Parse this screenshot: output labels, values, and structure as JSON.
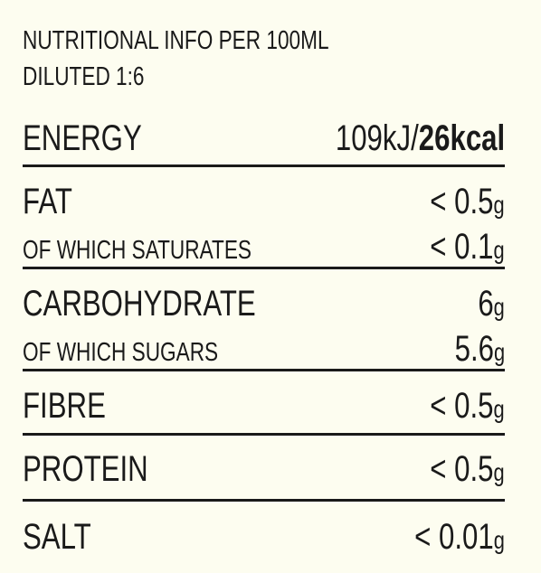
{
  "header": {
    "line1": "NUTRITIONAL INFO PER 100ML",
    "line2": "DILUTED 1:6"
  },
  "energy": {
    "label": "ENERGY",
    "kj": "109kJ/",
    "kcal": "26kcal"
  },
  "rows": [
    {
      "label": "FAT",
      "value": "< 0.5",
      "unit": "g"
    },
    {
      "label": "OF WHICH SATURATES",
      "value": "< 0.1",
      "unit": "g"
    },
    {
      "label": "CARBOHYDRATE",
      "value": "6",
      "unit": "g"
    },
    {
      "label": "OF WHICH SUGARS",
      "value": "5.6",
      "unit": "g"
    },
    {
      "label": "FIBRE",
      "value": "< 0.5",
      "unit": "g"
    },
    {
      "label": "PROTEIN",
      "value": "< 0.5",
      "unit": "g"
    },
    {
      "label": "SALT",
      "value": "< 0.01",
      "unit": "g"
    }
  ]
}
